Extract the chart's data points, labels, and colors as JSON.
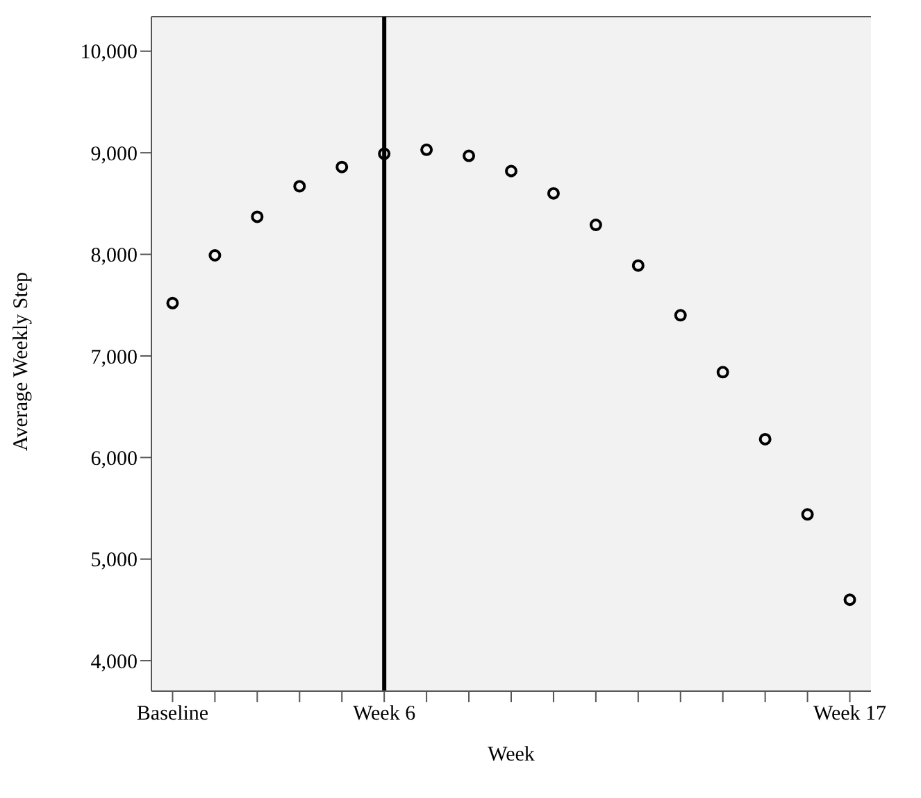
{
  "chart_data": {
    "type": "scatter",
    "xlabel": "Week",
    "ylabel": "Average Weekly Step",
    "categories": [
      "Baseline",
      null,
      null,
      null,
      null,
      "Week 6",
      null,
      null,
      null,
      null,
      null,
      null,
      null,
      null,
      null,
      null,
      "Week 17"
    ],
    "series": [
      {
        "color": "#000000",
        "values": [
          7520,
          7990,
          8370,
          8670,
          8860,
          8990,
          9030,
          8970,
          8820,
          8600,
          8290,
          7890,
          7400,
          6840,
          6180,
          5440,
          4600
        ]
      }
    ],
    "ylim": [
      3700,
      10340
    ],
    "yticks": [
      {
        "value": 4000,
        "label": "4,000"
      },
      {
        "value": 5000,
        "label": "5,000"
      },
      {
        "value": 6000,
        "label": "6,000"
      },
      {
        "value": 7000,
        "label": "7,000"
      },
      {
        "value": 8000,
        "label": "8,000"
      },
      {
        "value": 9000,
        "label": "9,000"
      },
      {
        "value": 10000,
        "label": "10,000"
      }
    ],
    "ref_lines": [
      {
        "axis": "x",
        "value": "Week 6",
        "color": "#000000"
      }
    ],
    "marker": "circle"
  }
}
